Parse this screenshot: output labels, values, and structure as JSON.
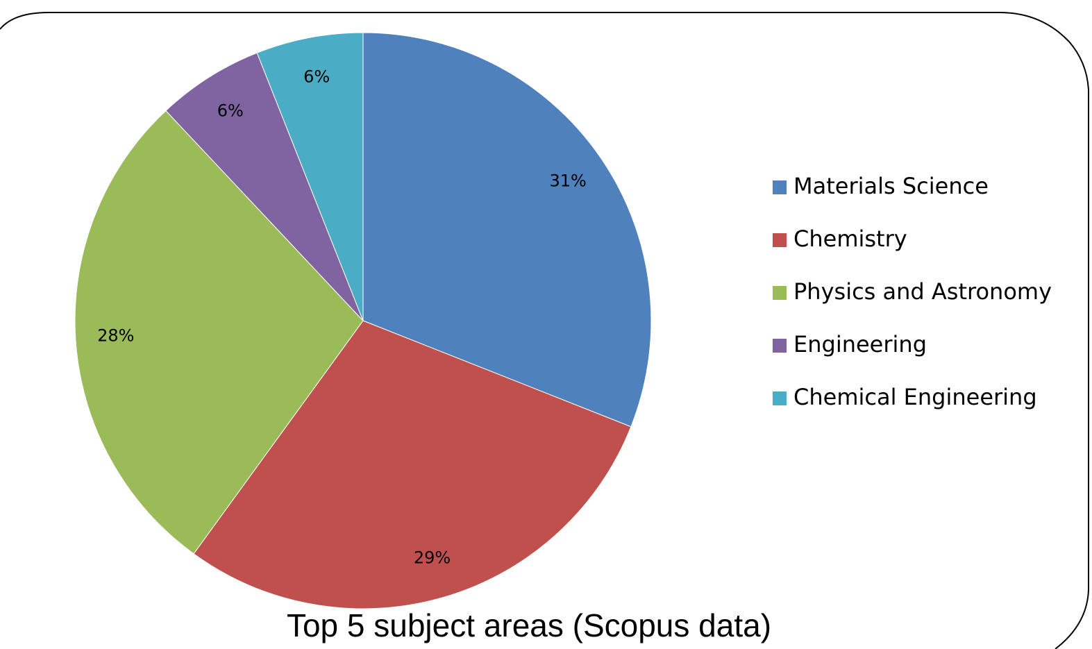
{
  "chart_data": {
    "type": "pie",
    "title": "Top 5 subject areas (Scopus data)",
    "categories": [
      "Materials Science",
      "Chemistry",
      "Physics and Astronomy",
      "Engineering",
      "Chemical Engineering"
    ],
    "values": [
      31,
      29,
      28,
      6,
      6
    ],
    "value_labels": [
      "31%",
      "29%",
      "28%",
      "6%",
      "6%"
    ],
    "colors": [
      "#4f81bd",
      "#c0504d",
      "#9bbb59",
      "#8064a2",
      "#4bacc6"
    ],
    "legend": "right"
  }
}
